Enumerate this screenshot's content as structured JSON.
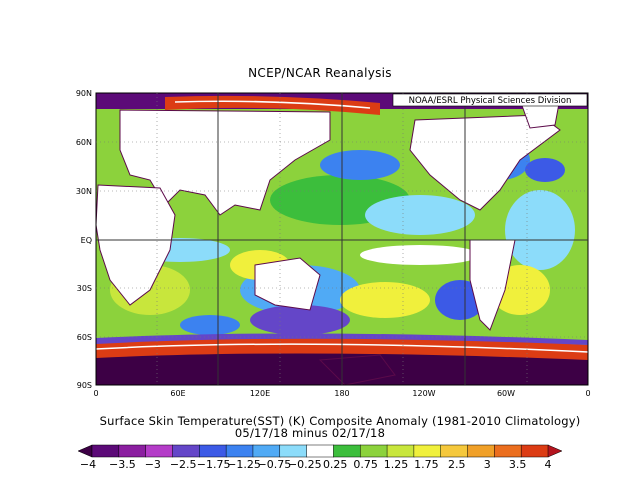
{
  "title": "NCEP/NCAR Reanalysis",
  "credit": "NOAA/ESRL Physical Sciences Division",
  "caption_line1": "Surface Skin Temperature(SST) (K) Composite Anomaly (1981-2010 Climatology)",
  "caption_line2": "05/17/18 minus 02/17/18",
  "lat_labels": [
    "90N",
    "60N",
    "30N",
    "EQ",
    "30S",
    "60S",
    "90S"
  ],
  "lon_labels": [
    "0",
    "60E",
    "120E",
    "180",
    "120W",
    "60W",
    "0"
  ],
  "colorbar": {
    "labels": [
      "−4",
      "−3.5",
      "−3",
      "−2.5",
      "−1.75",
      "−1.25",
      "−0.75",
      "−0.25",
      "0.25",
      "0.75",
      "1.25",
      "1.75",
      "2.5",
      "3",
      "3.5",
      "4"
    ],
    "colors": [
      "#3d0045",
      "#5c0a78",
      "#8b1ea0",
      "#b43cc8",
      "#6446c8",
      "#3c5ae6",
      "#3c82f0",
      "#50aaf5",
      "#8cdcfa",
      "#ffffff",
      "#3cbe3c",
      "#8cd23c",
      "#c8e63c",
      "#f0f03c",
      "#f5c83c",
      "#f0a028",
      "#eb6e1e",
      "#dc3c14",
      "#b4141e"
    ]
  }
}
